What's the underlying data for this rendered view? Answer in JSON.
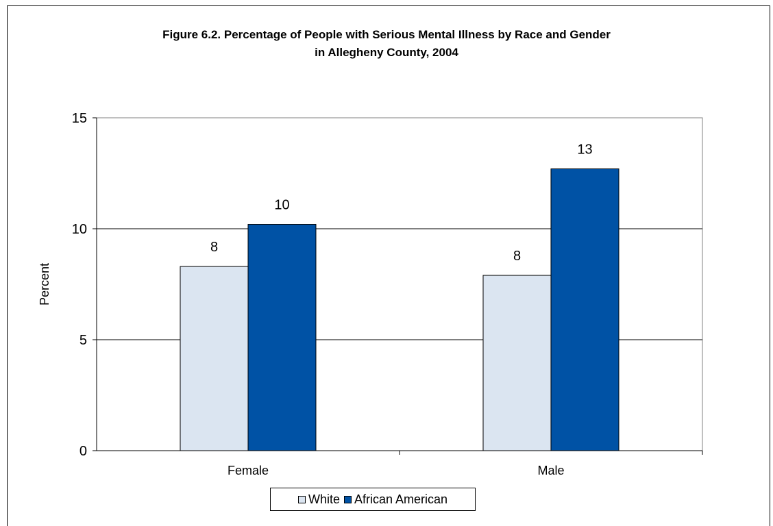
{
  "chart_data": {
    "type": "bar",
    "title_line1": "Figure 6.2. Percentage of People with Serious Mental Illness by Race and Gender",
    "title_line2": "in Allegheny County, 2004",
    "xlabel": "",
    "ylabel": "Percent",
    "ylim": [
      0,
      15
    ],
    "yticks": [
      0,
      5,
      10,
      15
    ],
    "grid": true,
    "legend_placement": "bottom",
    "categories": [
      "Female",
      "Male"
    ],
    "series": [
      {
        "name": "White",
        "values": [
          8.3,
          7.9
        ],
        "labels": [
          "8",
          "8"
        ],
        "color": "#dbe5f1"
      },
      {
        "name": "African American",
        "values": [
          10.2,
          12.7
        ],
        "labels": [
          "10",
          "13"
        ],
        "color": "#0052a5"
      }
    ]
  }
}
